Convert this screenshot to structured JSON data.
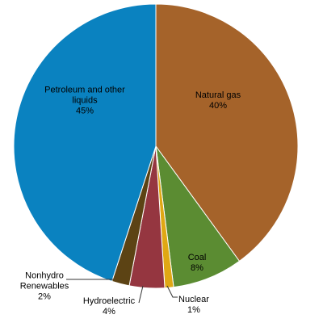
{
  "chart_data": {
    "type": "pie",
    "categories": [
      "Natural gas",
      "Coal",
      "Nuclear",
      "Hydroelectric",
      "Nonhydro Renewables",
      "Petroleum and other liquids"
    ],
    "values": [
      40,
      8,
      1,
      4,
      2,
      45
    ],
    "value_labels": [
      "40%",
      "8%",
      "1%",
      "4%",
      "2%",
      "45%"
    ],
    "colors": [
      "#a5632a",
      "#5b8c32",
      "#e0a814",
      "#953640",
      "#5c4314",
      "#0a82c0"
    ]
  }
}
